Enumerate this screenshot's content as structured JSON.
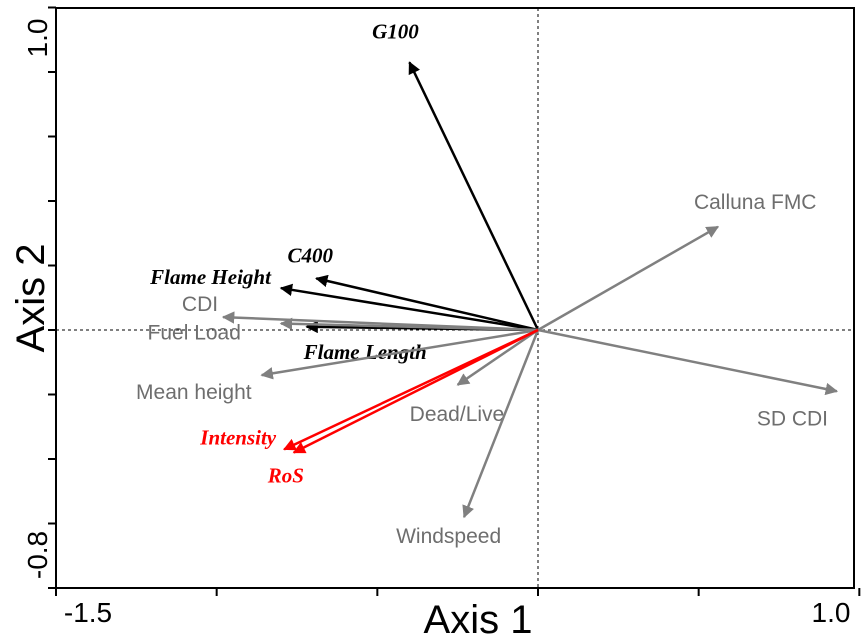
{
  "chart_data": {
    "type": "biplot",
    "xlabel": "Axis 1",
    "ylabel": "Axis 2",
    "xlim": [
      -1.5,
      1.0
    ],
    "ylim": [
      -0.8,
      1.0
    ],
    "x_tick_labels": [
      "-1.5",
      "1.0"
    ],
    "y_tick_labels": [
      "1.0",
      "-0.8"
    ],
    "grid": false,
    "reference_lines": "dashed lines at x=0 and y=0",
    "colors": {
      "gray": "#808080",
      "black": "#000000",
      "red": "#ff0000"
    },
    "vectors": [
      {
        "label": "G100",
        "x": -0.4,
        "y": 0.83,
        "color": "black",
        "style": "bold-italic-serif"
      },
      {
        "label": "C400",
        "x": -0.69,
        "y": 0.16,
        "color": "black",
        "style": "bold-italic-serif"
      },
      {
        "label": "Flame Height",
        "x": -0.8,
        "y": 0.13,
        "color": "black",
        "style": "bold-italic-serif"
      },
      {
        "label": "Flame Length",
        "x": -0.72,
        "y": 0.01,
        "color": "black",
        "style": "bold-italic-serif"
      },
      {
        "label": "CDI",
        "x": -0.98,
        "y": 0.04,
        "color": "gray",
        "style": "sans"
      },
      {
        "label": "Fuel Load",
        "x": -0.8,
        "y": 0.02,
        "color": "gray",
        "style": "sans"
      },
      {
        "label": "Mean height",
        "x": -0.86,
        "y": -0.14,
        "color": "gray",
        "style": "sans"
      },
      {
        "label": "Dead/Live",
        "x": -0.25,
        "y": -0.17,
        "color": "gray",
        "style": "sans"
      },
      {
        "label": "Windspeed",
        "x": -0.23,
        "y": -0.58,
        "color": "gray",
        "style": "sans"
      },
      {
        "label": "Calluna FMC",
        "x": 0.56,
        "y": 0.32,
        "color": "gray",
        "style": "sans"
      },
      {
        "label": "SD CDI",
        "x": 0.93,
        "y": -0.19,
        "color": "gray",
        "style": "sans"
      },
      {
        "label": "Intensity",
        "x": -0.79,
        "y": -0.37,
        "color": "red",
        "style": "bold-italic-serif"
      },
      {
        "label": "RoS",
        "x": -0.76,
        "y": -0.38,
        "color": "red",
        "style": "bold-italic-serif"
      }
    ]
  }
}
